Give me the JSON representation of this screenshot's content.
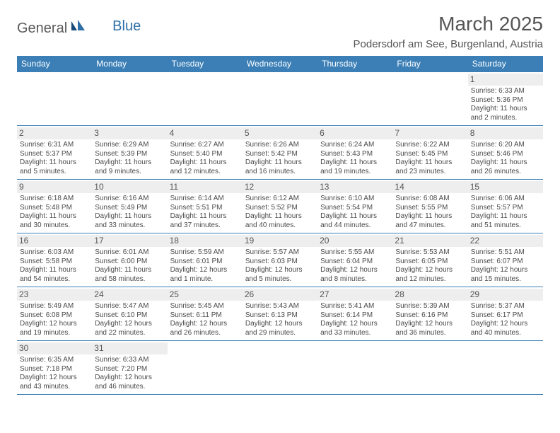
{
  "logo": {
    "part1": "General",
    "part2": "Blue"
  },
  "title": "March 2025",
  "location": "Podersdorf am See, Burgenland, Austria",
  "colors": {
    "header_bg": "#3b7fb6",
    "header_text": "#ffffff",
    "border": "#3b7fb6",
    "daynum_bg": "#eeeeee",
    "text": "#4a4a4a",
    "logo_gray": "#5a5a5a",
    "logo_blue": "#2f6fa7"
  },
  "weekdays": [
    "Sunday",
    "Monday",
    "Tuesday",
    "Wednesday",
    "Thursday",
    "Friday",
    "Saturday"
  ],
  "layout": {
    "columns": 7,
    "rows": 6,
    "first_weekday_index": 6,
    "days_in_month": 31
  },
  "days": {
    "1": {
      "sunrise": "Sunrise: 6:33 AM",
      "sunset": "Sunset: 5:36 PM",
      "day1": "Daylight: 11 hours",
      "day2": "and 2 minutes."
    },
    "2": {
      "sunrise": "Sunrise: 6:31 AM",
      "sunset": "Sunset: 5:37 PM",
      "day1": "Daylight: 11 hours",
      "day2": "and 5 minutes."
    },
    "3": {
      "sunrise": "Sunrise: 6:29 AM",
      "sunset": "Sunset: 5:39 PM",
      "day1": "Daylight: 11 hours",
      "day2": "and 9 minutes."
    },
    "4": {
      "sunrise": "Sunrise: 6:27 AM",
      "sunset": "Sunset: 5:40 PM",
      "day1": "Daylight: 11 hours",
      "day2": "and 12 minutes."
    },
    "5": {
      "sunrise": "Sunrise: 6:26 AM",
      "sunset": "Sunset: 5:42 PM",
      "day1": "Daylight: 11 hours",
      "day2": "and 16 minutes."
    },
    "6": {
      "sunrise": "Sunrise: 6:24 AM",
      "sunset": "Sunset: 5:43 PM",
      "day1": "Daylight: 11 hours",
      "day2": "and 19 minutes."
    },
    "7": {
      "sunrise": "Sunrise: 6:22 AM",
      "sunset": "Sunset: 5:45 PM",
      "day1": "Daylight: 11 hours",
      "day2": "and 23 minutes."
    },
    "8": {
      "sunrise": "Sunrise: 6:20 AM",
      "sunset": "Sunset: 5:46 PM",
      "day1": "Daylight: 11 hours",
      "day2": "and 26 minutes."
    },
    "9": {
      "sunrise": "Sunrise: 6:18 AM",
      "sunset": "Sunset: 5:48 PM",
      "day1": "Daylight: 11 hours",
      "day2": "and 30 minutes."
    },
    "10": {
      "sunrise": "Sunrise: 6:16 AM",
      "sunset": "Sunset: 5:49 PM",
      "day1": "Daylight: 11 hours",
      "day2": "and 33 minutes."
    },
    "11": {
      "sunrise": "Sunrise: 6:14 AM",
      "sunset": "Sunset: 5:51 PM",
      "day1": "Daylight: 11 hours",
      "day2": "and 37 minutes."
    },
    "12": {
      "sunrise": "Sunrise: 6:12 AM",
      "sunset": "Sunset: 5:52 PM",
      "day1": "Daylight: 11 hours",
      "day2": "and 40 minutes."
    },
    "13": {
      "sunrise": "Sunrise: 6:10 AM",
      "sunset": "Sunset: 5:54 PM",
      "day1": "Daylight: 11 hours",
      "day2": "and 44 minutes."
    },
    "14": {
      "sunrise": "Sunrise: 6:08 AM",
      "sunset": "Sunset: 5:55 PM",
      "day1": "Daylight: 11 hours",
      "day2": "and 47 minutes."
    },
    "15": {
      "sunrise": "Sunrise: 6:06 AM",
      "sunset": "Sunset: 5:57 PM",
      "day1": "Daylight: 11 hours",
      "day2": "and 51 minutes."
    },
    "16": {
      "sunrise": "Sunrise: 6:03 AM",
      "sunset": "Sunset: 5:58 PM",
      "day1": "Daylight: 11 hours",
      "day2": "and 54 minutes."
    },
    "17": {
      "sunrise": "Sunrise: 6:01 AM",
      "sunset": "Sunset: 6:00 PM",
      "day1": "Daylight: 11 hours",
      "day2": "and 58 minutes."
    },
    "18": {
      "sunrise": "Sunrise: 5:59 AM",
      "sunset": "Sunset: 6:01 PM",
      "day1": "Daylight: 12 hours",
      "day2": "and 1 minute."
    },
    "19": {
      "sunrise": "Sunrise: 5:57 AM",
      "sunset": "Sunset: 6:03 PM",
      "day1": "Daylight: 12 hours",
      "day2": "and 5 minutes."
    },
    "20": {
      "sunrise": "Sunrise: 5:55 AM",
      "sunset": "Sunset: 6:04 PM",
      "day1": "Daylight: 12 hours",
      "day2": "and 8 minutes."
    },
    "21": {
      "sunrise": "Sunrise: 5:53 AM",
      "sunset": "Sunset: 6:05 PM",
      "day1": "Daylight: 12 hours",
      "day2": "and 12 minutes."
    },
    "22": {
      "sunrise": "Sunrise: 5:51 AM",
      "sunset": "Sunset: 6:07 PM",
      "day1": "Daylight: 12 hours",
      "day2": "and 15 minutes."
    },
    "23": {
      "sunrise": "Sunrise: 5:49 AM",
      "sunset": "Sunset: 6:08 PM",
      "day1": "Daylight: 12 hours",
      "day2": "and 19 minutes."
    },
    "24": {
      "sunrise": "Sunrise: 5:47 AM",
      "sunset": "Sunset: 6:10 PM",
      "day1": "Daylight: 12 hours",
      "day2": "and 22 minutes."
    },
    "25": {
      "sunrise": "Sunrise: 5:45 AM",
      "sunset": "Sunset: 6:11 PM",
      "day1": "Daylight: 12 hours",
      "day2": "and 26 minutes."
    },
    "26": {
      "sunrise": "Sunrise: 5:43 AM",
      "sunset": "Sunset: 6:13 PM",
      "day1": "Daylight: 12 hours",
      "day2": "and 29 minutes."
    },
    "27": {
      "sunrise": "Sunrise: 5:41 AM",
      "sunset": "Sunset: 6:14 PM",
      "day1": "Daylight: 12 hours",
      "day2": "and 33 minutes."
    },
    "28": {
      "sunrise": "Sunrise: 5:39 AM",
      "sunset": "Sunset: 6:16 PM",
      "day1": "Daylight: 12 hours",
      "day2": "and 36 minutes."
    },
    "29": {
      "sunrise": "Sunrise: 5:37 AM",
      "sunset": "Sunset: 6:17 PM",
      "day1": "Daylight: 12 hours",
      "day2": "and 40 minutes."
    },
    "30": {
      "sunrise": "Sunrise: 6:35 AM",
      "sunset": "Sunset: 7:18 PM",
      "day1": "Daylight: 12 hours",
      "day2": "and 43 minutes."
    },
    "31": {
      "sunrise": "Sunrise: 6:33 AM",
      "sunset": "Sunset: 7:20 PM",
      "day1": "Daylight: 12 hours",
      "day2": "and 46 minutes."
    }
  }
}
